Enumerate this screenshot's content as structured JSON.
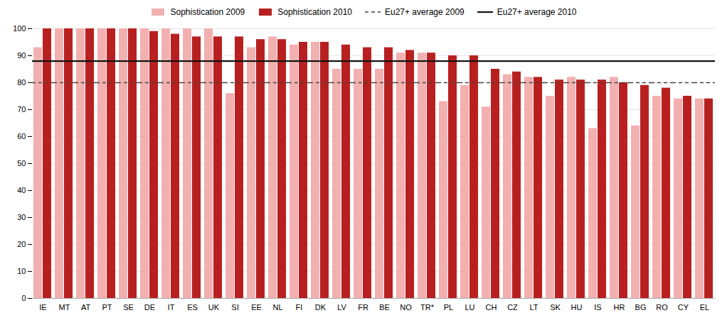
{
  "chart_data": {
    "type": "bar",
    "categories": [
      "IE",
      "MT",
      "AT",
      "PT",
      "SE",
      "DE",
      "IT",
      "ES",
      "UK",
      "SI",
      "EE",
      "NL",
      "FI",
      "DK",
      "LV",
      "FR",
      "BE",
      "NO",
      "TR*",
      "PL",
      "LU",
      "CH",
      "CZ",
      "LT",
      "SK",
      "HU",
      "IS",
      "HR",
      "BG",
      "RO",
      "CY",
      "EL"
    ],
    "series": [
      {
        "name": "Sophistication 2009",
        "color": "#f2b0b0",
        "values": [
          93,
          100,
          100,
          100,
          100,
          100,
          100,
          100,
          100,
          76,
          93,
          97,
          94,
          95,
          85,
          85,
          85,
          91,
          91,
          73,
          79,
          71,
          83,
          82,
          75,
          82,
          63,
          82,
          64,
          75,
          74,
          74
        ]
      },
      {
        "name": "Sophistication 2010",
        "color": "#b82020",
        "values": [
          100,
          100,
          100,
          100,
          100,
          99,
          98,
          97,
          97,
          97,
          96,
          96,
          95,
          95,
          94,
          93,
          93,
          92,
          91,
          90,
          90,
          85,
          84,
          82,
          81,
          81,
          81,
          80,
          79,
          78,
          75,
          74
        ]
      },
      {
        "name": "Eu27+ average 2009",
        "type": "hline",
        "color": "#444444",
        "line_style": "dashed",
        "value": 80
      },
      {
        "name": "Eu27+ average 2010",
        "type": "hline",
        "color": "#111111",
        "line_style": "solid",
        "value": 88
      }
    ],
    "ylim": [
      0,
      100
    ],
    "yticks": [
      0,
      10,
      20,
      30,
      40,
      50,
      60,
      70,
      80,
      90,
      100
    ],
    "grid": true,
    "legend": "top"
  }
}
